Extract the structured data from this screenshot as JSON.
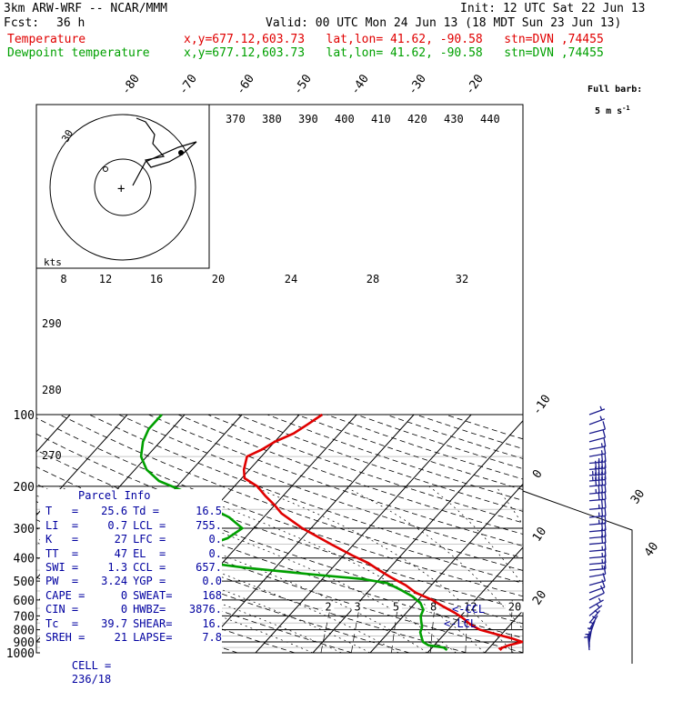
{
  "header": {
    "model": "3km ARW-WRF -- NCAR/MMM",
    "init": "Init: 12 UTC Sat 22 Jun 13",
    "fcst_label": "Fcst:",
    "fcst_value": "36 h",
    "valid": "Valid: 00 UTC Mon 24 Jun 13 (18 MDT Sun 23 Jun 13)",
    "temp_label": "Temperature",
    "dew_label": "Dewpoint temperature",
    "location_line": "x,y=677.12,603.73   lat,lon= 41.62, -90.58   stn=DVN ,74455",
    "barb_note_1": "Full barb:",
    "barb_note_2": "5 m s",
    "barb_note_sup": "-1"
  },
  "colors": {
    "temperature": "#e00000",
    "dewpoint": "#00a000",
    "parcel": "#0000a0",
    "wind": "#1a1a8c"
  },
  "chart_data": {
    "type": "line",
    "chart": "Skew-T log-P sounding",
    "pressure_levels": [
      100,
      200,
      300,
      400,
      500,
      600,
      700,
      800,
      900,
      1000
    ],
    "isotherm_labels": [
      "-80",
      "-70",
      "-60",
      "-50",
      "-40",
      "-30",
      "-20",
      "-10",
      "0",
      "10",
      "20",
      "30",
      "40"
    ],
    "theta_e_labels": [
      "370",
      "380",
      "390",
      "400",
      "410",
      "420",
      "430",
      "440"
    ],
    "mixing_ratio_labels": [
      "2",
      "3",
      "5",
      "8",
      "12",
      "20"
    ],
    "speed_axis_unit": "kts",
    "speed_ticks": [
      "8",
      "12",
      "16",
      "20",
      "24",
      "28",
      "32"
    ],
    "height_labels": [
      "290",
      "280",
      "270"
    ],
    "temperature": [
      [
        974,
        22.5
      ],
      [
        960,
        22.0
      ],
      [
        930,
        23.0
      ],
      [
        900,
        24.8
      ],
      [
        870,
        22.5
      ],
      [
        830,
        18.5
      ],
      [
        800,
        15.5
      ],
      [
        760,
        13.0
      ],
      [
        720,
        11.0
      ],
      [
        680,
        8.5
      ],
      [
        640,
        5.5
      ],
      [
        600,
        2.5
      ],
      [
        560,
        -1.5
      ],
      [
        520,
        -4.5
      ],
      [
        480,
        -8.5
      ],
      [
        450,
        -11.5
      ],
      [
        420,
        -14.5
      ],
      [
        390,
        -18.5
      ],
      [
        350,
        -24.0
      ],
      [
        300,
        -31.5
      ],
      [
        260,
        -37.5
      ],
      [
        240,
        -40.0
      ],
      [
        220,
        -43.0
      ],
      [
        200,
        -46.0
      ],
      [
        185,
        -49.5
      ],
      [
        170,
        -51.0
      ],
      [
        150,
        -52.5
      ],
      [
        140,
        -51.0
      ],
      [
        130,
        -50.0
      ],
      [
        120,
        -48.0
      ],
      [
        110,
        -47.0
      ],
      [
        100,
        -46.0
      ]
    ],
    "dewpoint": [
      [
        974,
        13.0
      ],
      [
        950,
        12.0
      ],
      [
        930,
        9.0
      ],
      [
        900,
        7.5
      ],
      [
        860,
        6.5
      ],
      [
        820,
        5.5
      ],
      [
        780,
        5.0
      ],
      [
        740,
        4.0
      ],
      [
        700,
        3.0
      ],
      [
        660,
        2.5
      ],
      [
        620,
        1.0
      ],
      [
        580,
        -1.5
      ],
      [
        540,
        -5.0
      ],
      [
        510,
        -8.0
      ],
      [
        490,
        -13.0
      ],
      [
        470,
        -22.0
      ],
      [
        440,
        -35.0
      ],
      [
        410,
        -46.0
      ],
      [
        390,
        -50.0
      ],
      [
        370,
        -50.0
      ],
      [
        350,
        -45.0
      ],
      [
        330,
        -43.0
      ],
      [
        300,
        -42.0
      ],
      [
        270,
        -46.0
      ],
      [
        250,
        -50.0
      ],
      [
        230,
        -54.0
      ],
      [
        210,
        -58.0
      ],
      [
        190,
        -64.0
      ],
      [
        170,
        -68.0
      ],
      [
        150,
        -71.0
      ],
      [
        130,
        -73.0
      ],
      [
        115,
        -74.0
      ],
      [
        100,
        -74.0
      ]
    ],
    "parcel_markers": [
      {
        "label": "<-CCL",
        "pressure": 657
      },
      {
        "label": "<-LCL",
        "pressure": 755
      }
    ],
    "hodograph_speed_label": "30",
    "hodograph_marker": "+",
    "wind_barbs": [
      {
        "pressure": 100,
        "speed_kt": 5,
        "dir_deg": 250
      },
      {
        "pressure": 110,
        "speed_kt": 5,
        "dir_deg": 250
      },
      {
        "pressure": 120,
        "speed_kt": 10,
        "dir_deg": 255
      },
      {
        "pressure": 130,
        "speed_kt": 10,
        "dir_deg": 255
      },
      {
        "pressure": 140,
        "speed_kt": 15,
        "dir_deg": 260
      },
      {
        "pressure": 150,
        "speed_kt": 15,
        "dir_deg": 260
      },
      {
        "pressure": 160,
        "speed_kt": 25,
        "dir_deg": 265
      },
      {
        "pressure": 170,
        "speed_kt": 40,
        "dir_deg": 265
      },
      {
        "pressure": 180,
        "speed_kt": 45,
        "dir_deg": 265
      },
      {
        "pressure": 190,
        "speed_kt": 45,
        "dir_deg": 265
      },
      {
        "pressure": 200,
        "speed_kt": 40,
        "dir_deg": 265
      },
      {
        "pressure": 215,
        "speed_kt": 35,
        "dir_deg": 265
      },
      {
        "pressure": 230,
        "speed_kt": 30,
        "dir_deg": 265
      },
      {
        "pressure": 250,
        "speed_kt": 25,
        "dir_deg": 265
      },
      {
        "pressure": 270,
        "speed_kt": 25,
        "dir_deg": 265
      },
      {
        "pressure": 290,
        "speed_kt": 25,
        "dir_deg": 265
      },
      {
        "pressure": 310,
        "speed_kt": 20,
        "dir_deg": 265
      },
      {
        "pressure": 330,
        "speed_kt": 20,
        "dir_deg": 265
      },
      {
        "pressure": 350,
        "speed_kt": 20,
        "dir_deg": 265
      },
      {
        "pressure": 375,
        "speed_kt": 15,
        "dir_deg": 265
      },
      {
        "pressure": 400,
        "speed_kt": 15,
        "dir_deg": 265
      },
      {
        "pressure": 425,
        "speed_kt": 15,
        "dir_deg": 265
      },
      {
        "pressure": 450,
        "speed_kt": 15,
        "dir_deg": 265
      },
      {
        "pressure": 480,
        "speed_kt": 10,
        "dir_deg": 260
      },
      {
        "pressure": 520,
        "speed_kt": 10,
        "dir_deg": 255
      },
      {
        "pressure": 560,
        "speed_kt": 10,
        "dir_deg": 250
      },
      {
        "pressure": 600,
        "speed_kt": 10,
        "dir_deg": 245
      },
      {
        "pressure": 650,
        "speed_kt": 5,
        "dir_deg": 240
      },
      {
        "pressure": 700,
        "speed_kt": 5,
        "dir_deg": 230
      },
      {
        "pressure": 750,
        "speed_kt": 5,
        "dir_deg": 220
      },
      {
        "pressure": 800,
        "speed_kt": 5,
        "dir_deg": 210
      },
      {
        "pressure": 850,
        "speed_kt": 5,
        "dir_deg": 200
      },
      {
        "pressure": 900,
        "speed_kt": 5,
        "dir_deg": 190
      },
      {
        "pressure": 950,
        "speed_kt": 5,
        "dir_deg": 180
      },
      {
        "pressure": 975,
        "speed_kt": 5,
        "dir_deg": 175
      }
    ]
  },
  "parcel_info": {
    "title": "Parcel Info",
    "rows": [
      [
        "T   =",
        "25.6",
        "Td =",
        "16.5"
      ],
      [
        "LI  =",
        "0.7",
        "LCL =",
        "755."
      ],
      [
        "K   =",
        "27",
        "LFC =",
        "0."
      ],
      [
        "TT  =",
        "47",
        "EL  =",
        "0."
      ],
      [
        "SWI =",
        "1.3",
        "CCL =",
        "657."
      ],
      [
        "PW  =",
        "3.24",
        "YGP =",
        "0.0"
      ],
      [
        "CAPE =",
        "0",
        "SWEAT=",
        "168"
      ],
      [
        "CIN =",
        "0",
        "HWBZ=",
        "3876."
      ],
      [
        "Tc  =",
        "39.7",
        "SHEAR=",
        "16."
      ],
      [
        "SREH =",
        "21",
        "LAPSE=",
        "7.8"
      ]
    ],
    "cell_label": "CELL =",
    "cell_value": "236/18"
  }
}
